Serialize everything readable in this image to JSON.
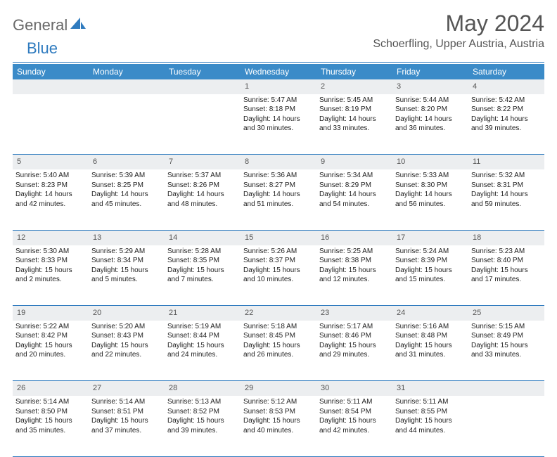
{
  "brand": {
    "part1": "General",
    "part2": "Blue"
  },
  "title": "May 2024",
  "location": "Schoerfling, Upper Austria, Austria",
  "theme": {
    "accent": "#3b8bc8",
    "rule": "#2f7bbf",
    "dayhead_bg": "#eceef0",
    "text_muted": "#555"
  },
  "weekdays": [
    "Sunday",
    "Monday",
    "Tuesday",
    "Wednesday",
    "Thursday",
    "Friday",
    "Saturday"
  ],
  "weeks": [
    {
      "nums": [
        "",
        "",
        "",
        "1",
        "2",
        "3",
        "4"
      ],
      "cells": [
        null,
        null,
        null,
        {
          "sunrise": "5:47 AM",
          "sunset": "8:18 PM",
          "daylight": "14 hours and 30 minutes."
        },
        {
          "sunrise": "5:45 AM",
          "sunset": "8:19 PM",
          "daylight": "14 hours and 33 minutes."
        },
        {
          "sunrise": "5:44 AM",
          "sunset": "8:20 PM",
          "daylight": "14 hours and 36 minutes."
        },
        {
          "sunrise": "5:42 AM",
          "sunset": "8:22 PM",
          "daylight": "14 hours and 39 minutes."
        }
      ]
    },
    {
      "nums": [
        "5",
        "6",
        "7",
        "8",
        "9",
        "10",
        "11"
      ],
      "cells": [
        {
          "sunrise": "5:40 AM",
          "sunset": "8:23 PM",
          "daylight": "14 hours and 42 minutes."
        },
        {
          "sunrise": "5:39 AM",
          "sunset": "8:25 PM",
          "daylight": "14 hours and 45 minutes."
        },
        {
          "sunrise": "5:37 AM",
          "sunset": "8:26 PM",
          "daylight": "14 hours and 48 minutes."
        },
        {
          "sunrise": "5:36 AM",
          "sunset": "8:27 PM",
          "daylight": "14 hours and 51 minutes."
        },
        {
          "sunrise": "5:34 AM",
          "sunset": "8:29 PM",
          "daylight": "14 hours and 54 minutes."
        },
        {
          "sunrise": "5:33 AM",
          "sunset": "8:30 PM",
          "daylight": "14 hours and 56 minutes."
        },
        {
          "sunrise": "5:32 AM",
          "sunset": "8:31 PM",
          "daylight": "14 hours and 59 minutes."
        }
      ]
    },
    {
      "nums": [
        "12",
        "13",
        "14",
        "15",
        "16",
        "17",
        "18"
      ],
      "cells": [
        {
          "sunrise": "5:30 AM",
          "sunset": "8:33 PM",
          "daylight": "15 hours and 2 minutes."
        },
        {
          "sunrise": "5:29 AM",
          "sunset": "8:34 PM",
          "daylight": "15 hours and 5 minutes."
        },
        {
          "sunrise": "5:28 AM",
          "sunset": "8:35 PM",
          "daylight": "15 hours and 7 minutes."
        },
        {
          "sunrise": "5:26 AM",
          "sunset": "8:37 PM",
          "daylight": "15 hours and 10 minutes."
        },
        {
          "sunrise": "5:25 AM",
          "sunset": "8:38 PM",
          "daylight": "15 hours and 12 minutes."
        },
        {
          "sunrise": "5:24 AM",
          "sunset": "8:39 PM",
          "daylight": "15 hours and 15 minutes."
        },
        {
          "sunrise": "5:23 AM",
          "sunset": "8:40 PM",
          "daylight": "15 hours and 17 minutes."
        }
      ]
    },
    {
      "nums": [
        "19",
        "20",
        "21",
        "22",
        "23",
        "24",
        "25"
      ],
      "cells": [
        {
          "sunrise": "5:22 AM",
          "sunset": "8:42 PM",
          "daylight": "15 hours and 20 minutes."
        },
        {
          "sunrise": "5:20 AM",
          "sunset": "8:43 PM",
          "daylight": "15 hours and 22 minutes."
        },
        {
          "sunrise": "5:19 AM",
          "sunset": "8:44 PM",
          "daylight": "15 hours and 24 minutes."
        },
        {
          "sunrise": "5:18 AM",
          "sunset": "8:45 PM",
          "daylight": "15 hours and 26 minutes."
        },
        {
          "sunrise": "5:17 AM",
          "sunset": "8:46 PM",
          "daylight": "15 hours and 29 minutes."
        },
        {
          "sunrise": "5:16 AM",
          "sunset": "8:48 PM",
          "daylight": "15 hours and 31 minutes."
        },
        {
          "sunrise": "5:15 AM",
          "sunset": "8:49 PM",
          "daylight": "15 hours and 33 minutes."
        }
      ]
    },
    {
      "nums": [
        "26",
        "27",
        "28",
        "29",
        "30",
        "31",
        ""
      ],
      "cells": [
        {
          "sunrise": "5:14 AM",
          "sunset": "8:50 PM",
          "daylight": "15 hours and 35 minutes."
        },
        {
          "sunrise": "5:14 AM",
          "sunset": "8:51 PM",
          "daylight": "15 hours and 37 minutes."
        },
        {
          "sunrise": "5:13 AM",
          "sunset": "8:52 PM",
          "daylight": "15 hours and 39 minutes."
        },
        {
          "sunrise": "5:12 AM",
          "sunset": "8:53 PM",
          "daylight": "15 hours and 40 minutes."
        },
        {
          "sunrise": "5:11 AM",
          "sunset": "8:54 PM",
          "daylight": "15 hours and 42 minutes."
        },
        {
          "sunrise": "5:11 AM",
          "sunset": "8:55 PM",
          "daylight": "15 hours and 44 minutes."
        },
        null
      ]
    }
  ],
  "labels": {
    "sunrise": "Sunrise:",
    "sunset": "Sunset:",
    "daylight": "Daylight:"
  }
}
